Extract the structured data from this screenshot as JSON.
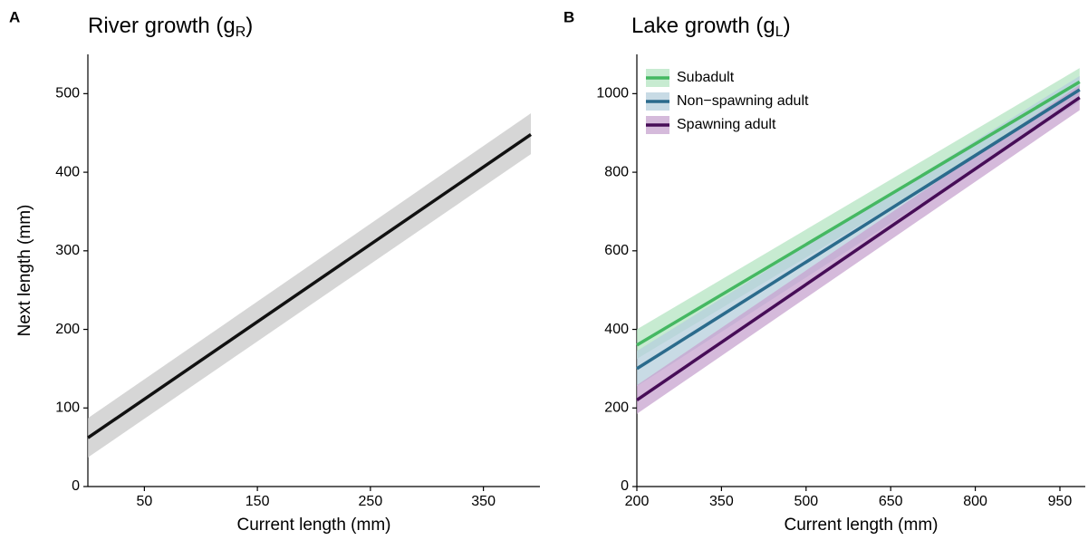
{
  "chart_data": [
    {
      "type": "line",
      "panel_label": "A",
      "title_parts": [
        "River growth (g",
        "R",
        ")"
      ],
      "x_label": "Current length (mm)",
      "y_label": "Next length (mm)",
      "xlim": [
        0,
        400
      ],
      "ylim": [
        0,
        550
      ],
      "xticks": [
        50,
        150,
        250,
        350
      ],
      "yticks": [
        0,
        100,
        200,
        300,
        400,
        500
      ],
      "x": [
        0,
        392
      ],
      "series": [
        {
          "color": "#111111",
          "band_color": "#c8c8c8",
          "values": [
            62,
            448
          ],
          "lower": [
            37,
            423
          ],
          "upper": [
            87,
            475
          ]
        }
      ]
    },
    {
      "type": "line",
      "panel_label": "B",
      "title_parts": [
        "Lake growth (g",
        "L",
        ")"
      ],
      "x_label": "Current length (mm)",
      "xlim": [
        200,
        995
      ],
      "ylim": [
        0,
        1100
      ],
      "xticks": [
        200,
        350,
        500,
        650,
        800,
        950
      ],
      "yticks": [
        0,
        200,
        400,
        600,
        800,
        1000
      ],
      "x": [
        200,
        985
      ],
      "legend": "upper left",
      "series": [
        {
          "name": "Subadult",
          "color": "#45b862",
          "band_color": "#b4e4c1",
          "values": [
            360,
            1030
          ],
          "lower": [
            325,
            1000
          ],
          "upper": [
            400,
            1065
          ]
        },
        {
          "name": "Non−spawning adult",
          "color": "#2b6b8c",
          "band_color": "#b5cfdc",
          "values": [
            300,
            1010
          ],
          "lower": [
            255,
            980
          ],
          "upper": [
            345,
            1045
          ]
        },
        {
          "name": "Spawning adult",
          "color": "#470d57",
          "band_color": "#c7a3cf",
          "values": [
            220,
            990
          ],
          "lower": [
            185,
            958
          ],
          "upper": [
            258,
            1022
          ]
        }
      ]
    }
  ]
}
